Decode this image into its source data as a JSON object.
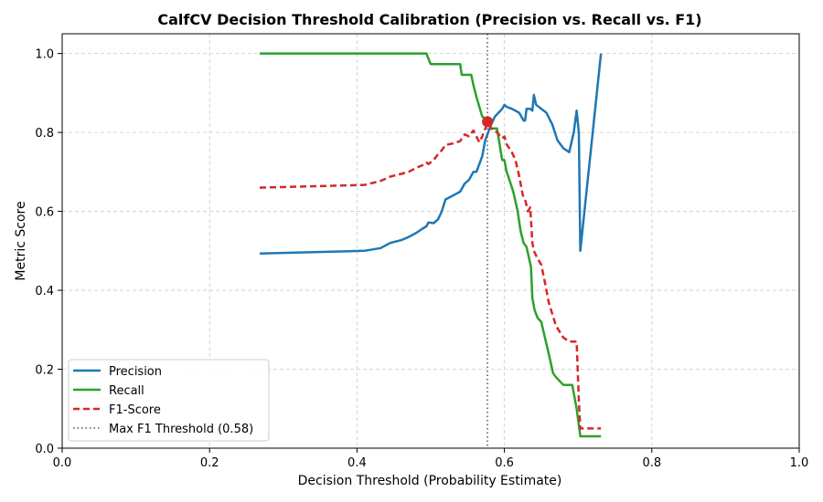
{
  "chart_data": {
    "type": "line",
    "title": "CalfCV Decision Threshold Calibration (Precision vs. Recall vs. F1)",
    "xlabel": "Decision Threshold (Probability Estimate)",
    "ylabel": "Metric Score",
    "xlim": [
      0.0,
      1.0
    ],
    "ylim": [
      0.0,
      1.05
    ],
    "xticks": [
      "0.0",
      "0.2",
      "0.4",
      "0.6",
      "0.8",
      "1.0"
    ],
    "yticks": [
      "0.0",
      "0.2",
      "0.4",
      "0.6",
      "0.8",
      "1.0"
    ],
    "grid": true,
    "legend_position": "lower-left",
    "series": [
      {
        "name": "Precision",
        "color": "#1f77b4",
        "style": "solid",
        "x": [
          0.268,
          0.41,
          0.432,
          0.445,
          0.46,
          0.47,
          0.48,
          0.488,
          0.494,
          0.497,
          0.504,
          0.51,
          0.515,
          0.52,
          0.53,
          0.54,
          0.546,
          0.552,
          0.558,
          0.562,
          0.566,
          0.57,
          0.574,
          0.578,
          0.582,
          0.587,
          0.592,
          0.597,
          0.6,
          0.603,
          0.61,
          0.62,
          0.626,
          0.628,
          0.63,
          0.635,
          0.638,
          0.64,
          0.643,
          0.65,
          0.657,
          0.665,
          0.672,
          0.68,
          0.688,
          0.694,
          0.698,
          0.701,
          0.703,
          0.731
        ],
        "y": [
          0.493,
          0.5,
          0.507,
          0.52,
          0.527,
          0.535,
          0.545,
          0.555,
          0.562,
          0.572,
          0.57,
          0.58,
          0.6,
          0.63,
          0.64,
          0.65,
          0.67,
          0.68,
          0.7,
          0.7,
          0.72,
          0.74,
          0.78,
          0.8,
          0.82,
          0.84,
          0.85,
          0.86,
          0.87,
          0.865,
          0.86,
          0.85,
          0.83,
          0.83,
          0.86,
          0.86,
          0.855,
          0.895,
          0.87,
          0.86,
          0.85,
          0.82,
          0.78,
          0.76,
          0.75,
          0.8,
          0.855,
          0.8,
          0.5,
          1.0
        ]
      },
      {
        "name": "Recall",
        "color": "#2ca02c",
        "style": "solid",
        "x": [
          0.268,
          0.494,
          0.5,
          0.54,
          0.542,
          0.555,
          0.558,
          0.562,
          0.566,
          0.57,
          0.574,
          0.578,
          0.582,
          0.59,
          0.597,
          0.6,
          0.603,
          0.605,
          0.612,
          0.618,
          0.622,
          0.626,
          0.63,
          0.636,
          0.638,
          0.641,
          0.645,
          0.65,
          0.655,
          0.66,
          0.666,
          0.67,
          0.68,
          0.686,
          0.692,
          0.698,
          0.703,
          0.731
        ],
        "y": [
          1.0,
          1.0,
          0.973,
          0.973,
          0.946,
          0.946,
          0.92,
          0.89,
          0.865,
          0.84,
          0.835,
          0.83,
          0.81,
          0.81,
          0.73,
          0.73,
          0.7,
          0.69,
          0.65,
          0.6,
          0.55,
          0.52,
          0.51,
          0.46,
          0.38,
          0.35,
          0.33,
          0.32,
          0.28,
          0.24,
          0.19,
          0.18,
          0.16,
          0.16,
          0.16,
          0.1,
          0.03,
          0.03
        ]
      },
      {
        "name": "F1-Score",
        "color": "#d62728",
        "style": "dashed",
        "x": [
          0.268,
          0.41,
          0.432,
          0.445,
          0.46,
          0.47,
          0.48,
          0.488,
          0.494,
          0.497,
          0.504,
          0.51,
          0.515,
          0.52,
          0.53,
          0.54,
          0.546,
          0.552,
          0.558,
          0.562,
          0.566,
          0.57,
          0.574,
          0.578,
          0.582,
          0.59,
          0.597,
          0.6,
          0.603,
          0.61,
          0.615,
          0.62,
          0.625,
          0.628,
          0.632,
          0.635,
          0.638,
          0.64,
          0.645,
          0.65,
          0.655,
          0.66,
          0.67,
          0.68,
          0.688,
          0.695,
          0.698,
          0.701,
          0.703,
          0.731
        ],
        "y": [
          0.66,
          0.667,
          0.677,
          0.688,
          0.695,
          0.7,
          0.71,
          0.716,
          0.724,
          0.72,
          0.73,
          0.745,
          0.755,
          0.768,
          0.772,
          0.778,
          0.795,
          0.79,
          0.805,
          0.79,
          0.775,
          0.79,
          0.81,
          0.825,
          0.81,
          0.8,
          0.785,
          0.79,
          0.77,
          0.75,
          0.73,
          0.69,
          0.64,
          0.63,
          0.6,
          0.61,
          0.52,
          0.5,
          0.48,
          0.465,
          0.42,
          0.37,
          0.31,
          0.28,
          0.27,
          0.27,
          0.27,
          0.12,
          0.05,
          0.05
        ]
      }
    ],
    "threshold_line": {
      "label": "Max F1 Threshold (0.58)",
      "x": 0.577,
      "color": "#555555"
    },
    "max_point": {
      "x": 0.577,
      "y": 0.827,
      "color": "#d62728"
    }
  }
}
